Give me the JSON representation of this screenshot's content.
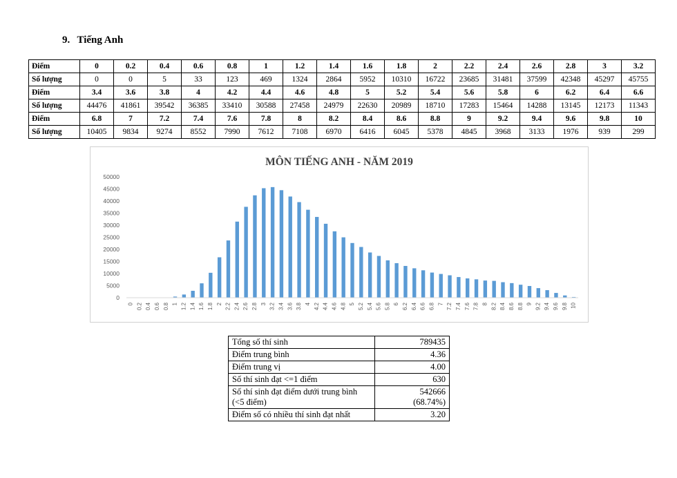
{
  "section": {
    "number": "9.",
    "title": "Tiếng Anh"
  },
  "score_table": {
    "rows": [
      {
        "label": "Điểm",
        "cells": [
          "0",
          "0.2",
          "0.4",
          "0.6",
          "0.8",
          "1",
          "1.2",
          "1.4",
          "1.6",
          "1.8",
          "2",
          "2.2",
          "2.4",
          "2.6",
          "2.8",
          "3",
          "3.2"
        ]
      },
      {
        "label": "Số lượng",
        "cells": [
          "0",
          "0",
          "5",
          "33",
          "123",
          "469",
          "1324",
          "2864",
          "5952",
          "10310",
          "16722",
          "23685",
          "31481",
          "37599",
          "42348",
          "45297",
          "45755"
        ]
      },
      {
        "label": "Điểm",
        "cells": [
          "3.4",
          "3.6",
          "3.8",
          "4",
          "4.2",
          "4.4",
          "4.6",
          "4.8",
          "5",
          "5.2",
          "5.4",
          "5.6",
          "5.8",
          "6",
          "6.2",
          "6.4",
          "6.6"
        ]
      },
      {
        "label": "Số lượng",
        "cells": [
          "44476",
          "41861",
          "39542",
          "36385",
          "33410",
          "30588",
          "27458",
          "24979",
          "22630",
          "20989",
          "18710",
          "17283",
          "15464",
          "14288",
          "13145",
          "12173",
          "11343"
        ]
      },
      {
        "label": "Điểm",
        "cells": [
          "6.8",
          "7",
          "7.2",
          "7.4",
          "7.6",
          "7.8",
          "8",
          "8.2",
          "8.4",
          "8.6",
          "8.8",
          "9",
          "9.2",
          "9.4",
          "9.6",
          "9.8",
          "10"
        ]
      },
      {
        "label": "Số lượng",
        "cells": [
          "10405",
          "9834",
          "9274",
          "8552",
          "7990",
          "7612",
          "7108",
          "6970",
          "6416",
          "6045",
          "5378",
          "4845",
          "3968",
          "3133",
          "1976",
          "939",
          "299"
        ]
      }
    ]
  },
  "chart_data": {
    "type": "bar",
    "title": "MÔN TIẾNG ANH - NĂM 2019",
    "xlabel": "",
    "ylabel": "",
    "categories": [
      "0",
      "0.2",
      "0.4",
      "0.6",
      "0.8",
      "1",
      "1.2",
      "1.4",
      "1.6",
      "1.8",
      "2",
      "2.2",
      "2.4",
      "2.6",
      "2.8",
      "3",
      "3.2",
      "3.4",
      "3.6",
      "3.8",
      "4",
      "4.2",
      "4.4",
      "4.6",
      "4.8",
      "5",
      "5.2",
      "5.4",
      "5.6",
      "5.8",
      "6",
      "6.2",
      "6.4",
      "6.6",
      "6.8",
      "7",
      "7.2",
      "7.4",
      "7.6",
      "7.8",
      "8",
      "8.2",
      "8.4",
      "8.6",
      "8.8",
      "9",
      "9.2",
      "9.4",
      "9.6",
      "9.8",
      "10"
    ],
    "values": [
      0,
      0,
      5,
      33,
      123,
      469,
      1324,
      2864,
      5952,
      10310,
      16722,
      23685,
      31481,
      37599,
      42348,
      45297,
      45755,
      44476,
      41861,
      39542,
      36385,
      33410,
      30588,
      27458,
      24979,
      22630,
      20989,
      18710,
      17283,
      15464,
      14288,
      13145,
      12173,
      11343,
      10405,
      9834,
      9274,
      8552,
      7990,
      7612,
      7108,
      6970,
      6416,
      6045,
      5378,
      4845,
      3968,
      3133,
      1976,
      939,
      299
    ],
    "ylim": [
      0,
      50000
    ],
    "yticks": [
      0,
      5000,
      10000,
      15000,
      20000,
      25000,
      30000,
      35000,
      40000,
      45000,
      50000
    ],
    "bar_color": "#5B9BD5",
    "grid": false,
    "legend": "none"
  },
  "stats_table": [
    {
      "label": "Tổng số thí sinh",
      "value": "789435"
    },
    {
      "label": "Điểm trung bình",
      "value": "4.36"
    },
    {
      "label": "Điểm trung vị",
      "value": "4.00"
    },
    {
      "label": "Số thí sinh đạt <=1 điểm",
      "value": "630"
    },
    {
      "label": "Số thí sinh đạt điểm dưới trung bình (<5 điểm)",
      "value": "542666",
      "value2": "(68.74%)"
    },
    {
      "label": "Điểm số có nhiều thí sinh đạt nhất",
      "value": "3.20"
    }
  ]
}
